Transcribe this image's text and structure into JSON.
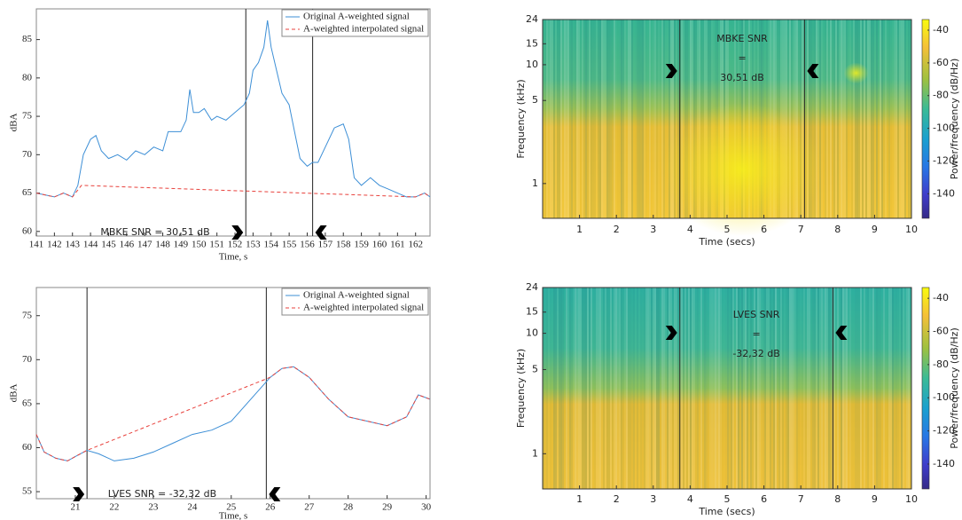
{
  "chart_data": [
    {
      "type": "line",
      "xlabel": "Time, s",
      "ylabel": "dBA",
      "xlim": [
        141,
        162.8
      ],
      "xticks": [
        141,
        142,
        143,
        144,
        145,
        146,
        147,
        148,
        149,
        150,
        151,
        152,
        153,
        154,
        155,
        156,
        157,
        158,
        159,
        160,
        161,
        162
      ],
      "ylim": [
        59.4,
        89
      ],
      "yticks": [
        60,
        65,
        70,
        75,
        80,
        85
      ],
      "markers": [
        152.6,
        156.3
      ],
      "annotation": "MBKE SNR = 30,51 dB",
      "series": [
        {
          "name": "Original A-weighted signal",
          "color": "#3d8fd6",
          "dashed": false,
          "x": [
            141,
            142,
            142.5,
            143,
            143.3,
            143.6,
            144,
            144.3,
            144.6,
            145,
            145.5,
            146,
            146.5,
            147,
            147.5,
            148,
            148.3,
            148.7,
            149,
            149.3,
            149.5,
            149.7,
            150,
            150.3,
            150.7,
            151,
            151.5,
            152,
            152.5,
            152.8,
            153,
            153.3,
            153.6,
            153.8,
            154,
            154.3,
            154.6,
            155,
            155.3,
            155.6,
            156,
            156.3,
            156.6,
            157,
            157.5,
            158,
            158.3,
            158.6,
            159,
            159.5,
            160,
            160.5,
            161,
            161.5,
            162,
            162.5,
            162.8
          ],
          "values": [
            65,
            64.5,
            65,
            64.5,
            66,
            70,
            72,
            72.5,
            70.5,
            69.5,
            70,
            69.3,
            70.5,
            70,
            71,
            70.5,
            73,
            73,
            73,
            74.5,
            78.5,
            75.5,
            75.5,
            76,
            74.5,
            75,
            74.5,
            75.5,
            76.5,
            78,
            81,
            82,
            84,
            87.5,
            84,
            81,
            78,
            76.5,
            73,
            69.5,
            68.5,
            69,
            69,
            71,
            73.5,
            74,
            72,
            67,
            66,
            67,
            66,
            65.5,
            65,
            64.5,
            64.5,
            65,
            64.5
          ]
        },
        {
          "name": "A-weighted interpolated signal",
          "color": "#e8413c",
          "dashed": true,
          "x": [
            141,
            142,
            142.5,
            143,
            143.5,
            162,
            162.5,
            162.8
          ],
          "values": [
            65,
            64.5,
            65,
            64.5,
            66,
            64.5,
            65,
            64.5
          ]
        }
      ]
    },
    {
      "type": "spectrogram",
      "xlabel": "Time (secs)",
      "ylabel": "Frequency (kHz)",
      "xlim": [
        0,
        10
      ],
      "xticks": [
        1,
        2,
        3,
        4,
        5,
        6,
        7,
        8,
        9,
        10
      ],
      "ylim": [
        0.51,
        24
      ],
      "yticks": [
        1,
        5,
        10,
        15,
        24
      ],
      "ylog": true,
      "markers": [
        3.72,
        7.1
      ],
      "annotation": [
        "MBKE SNR",
        "=",
        "30,51 dB"
      ],
      "colorbar": {
        "label": "Power/frequency (dB/Hz)",
        "lim": [
          -155,
          -33.5
        ],
        "ticks": [
          -40,
          -60,
          -80,
          -100,
          -120,
          -140
        ]
      }
    },
    {
      "type": "line",
      "xlabel": "Time, s",
      "ylabel": "dBA",
      "xlim": [
        20,
        30.1
      ],
      "xticks": [
        21,
        22,
        23,
        24,
        25,
        26,
        27,
        28,
        29,
        30
      ],
      "ylim": [
        54.2,
        78.2
      ],
      "yticks": [
        55,
        60,
        65,
        70,
        75
      ],
      "markers": [
        21.3,
        25.9
      ],
      "annotation": "LVES SNR = -32,32 dB",
      "series": [
        {
          "name": "Original A-weighted signal",
          "color": "#3d8fd6",
          "dashed": false,
          "x": [
            20,
            20.2,
            20.5,
            20.8,
            21,
            21.3,
            21.6,
            22,
            22.5,
            23,
            23.5,
            24,
            24.5,
            25,
            25.5,
            26,
            26.3,
            26.6,
            27,
            27.5,
            28,
            28.5,
            29,
            29.5,
            29.8,
            30.1
          ],
          "values": [
            61.5,
            59.5,
            58.8,
            58.5,
            59,
            59.7,
            59.3,
            58.5,
            58.8,
            59.5,
            60.5,
            61.5,
            62,
            63,
            65.5,
            68,
            69,
            69.2,
            68,
            65.5,
            63.5,
            63,
            62.5,
            63.5,
            66,
            65.5
          ]
        },
        {
          "name": "A-weighted interpolated signal",
          "color": "#e8413c",
          "dashed": true,
          "x": [
            20,
            20.2,
            20.5,
            20.8,
            21,
            21.3,
            26,
            26.3,
            26.6,
            27,
            27.5,
            28,
            28.5,
            29,
            29.5,
            29.8,
            30.1
          ],
          "values": [
            61.5,
            59.5,
            58.8,
            58.5,
            59,
            59.7,
            68,
            69,
            69.2,
            68,
            65.5,
            63.5,
            63,
            62.5,
            63.5,
            66,
            65.5
          ]
        }
      ]
    },
    {
      "type": "spectrogram",
      "xlabel": "Time (secs)",
      "ylabel": "Frequency (kHz)",
      "xlim": [
        0,
        10
      ],
      "xticks": [
        1,
        2,
        3,
        4,
        5,
        6,
        7,
        8,
        9,
        10
      ],
      "ylim": [
        0.51,
        24
      ],
      "yticks": [
        1,
        5,
        10,
        15,
        24
      ],
      "ylog": true,
      "markers": [
        3.72,
        7.87
      ],
      "annotation": [
        "LVES SNR",
        "=",
        "-32,32 dB"
      ],
      "colorbar": {
        "label": "Power/frequency (dB/Hz)",
        "lim": [
          -155,
          -33.5
        ],
        "ticks": [
          -40,
          -60,
          -80,
          -100,
          -120,
          -140
        ]
      }
    }
  ]
}
